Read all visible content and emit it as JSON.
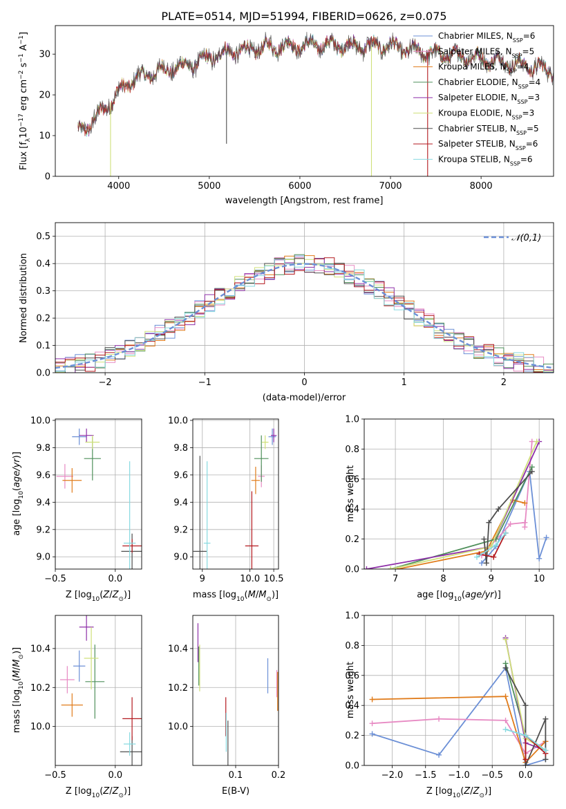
{
  "title": "PLATE=0514, MJD=51994, FIBERID=0626, z=0.075",
  "models": [
    {
      "name": "Chabrier MILES",
      "nssp": "6",
      "color": "#6b8fd6"
    },
    {
      "name": "Salpeter MILES",
      "nssp": "5",
      "color": "#e78ac3"
    },
    {
      "name": "Kroupa MILES",
      "nssp": "4",
      "color": "#e07b1a"
    },
    {
      "name": "Chabrier ELODIE",
      "nssp": "4",
      "color": "#4e8f5a"
    },
    {
      "name": "Salpeter ELODIE",
      "nssp": "3",
      "color": "#8e2fa8"
    },
    {
      "name": "Kroupa ELODIE",
      "nssp": "3",
      "color": "#cfe07a"
    },
    {
      "name": "Chabrier STELIB",
      "nssp": "5",
      "color": "#4d4d4d"
    },
    {
      "name": "Salpeter STELIB",
      "nssp": "6",
      "color": "#b3181e"
    },
    {
      "name": "Kroupa STELIB",
      "nssp": "6",
      "color": "#86d9e0"
    }
  ],
  "chart_data": [
    {
      "id": "spectrum",
      "type": "line",
      "xlabel": "wavelength [Angstrom, rest frame]",
      "ylabel": "Flux [f_λ 10^−17 erg cm^−2 s^−1 A^−1]",
      "xlim": [
        3300,
        8800
      ],
      "ylim": [
        0,
        37
      ],
      "xticks": [
        4000,
        5000,
        6000,
        7000,
        8000
      ],
      "yticks": [
        0,
        10,
        20,
        30
      ],
      "grid": false,
      "legend_position": "top-right",
      "continuum": {
        "x": [
          3550,
          3700,
          3850,
          3950,
          4050,
          4200,
          4400,
          4600,
          4800,
          5000,
          5200,
          5400,
          5600,
          5800,
          6000,
          6200,
          6500,
          6800,
          7000,
          7200,
          7500,
          7800,
          8100,
          8400,
          8800
        ],
        "y": [
          11,
          13,
          17,
          19,
          22,
          24,
          25.5,
          26.5,
          27.5,
          29,
          30.5,
          31,
          31.5,
          32,
          32,
          32.3,
          32,
          32,
          32,
          31,
          30,
          29.5,
          28.5,
          27.5,
          26
        ]
      },
      "spikes": [
        {
          "series": "Kroupa ELODIE",
          "x": 3910,
          "y": 0
        },
        {
          "series": "Kroupa ELODIE",
          "x": 6790,
          "y": 0
        },
        {
          "series": "Salpeter STELIB",
          "x": 7410,
          "y": 0
        },
        {
          "series": "Chabrier STELIB",
          "x": 5190,
          "y": 8
        }
      ]
    },
    {
      "id": "residuals",
      "type": "histogram",
      "xlabel": "(data-model)/error",
      "ylabel": "Normed distribution",
      "xlim": [
        -2.5,
        2.5
      ],
      "ylim": [
        0,
        0.55
      ],
      "xticks": [
        -2,
        -1,
        0,
        1,
        2
      ],
      "yticks": [
        0.0,
        0.1,
        0.2,
        0.3,
        0.4,
        0.5
      ],
      "grid": true,
      "bin_width": 0.1,
      "reference_curve": {
        "label": "𝒩(0,1)",
        "mean": 0,
        "sigma": 1,
        "color": "#6b8fd6",
        "dashed": true
      },
      "legend_position": "top-right"
    },
    {
      "id": "age-vs-Z",
      "type": "errorbar",
      "xlabel": "Z [log10(Z/Z⊙)]",
      "ylabel": "age [log10(age/yr)]",
      "xlim": [
        -0.5,
        0.22
      ],
      "ylim": [
        8.91,
        10.01
      ],
      "xticks": [
        -0.5,
        0.0
      ],
      "yticks": [
        9.0,
        9.2,
        9.4,
        9.6,
        9.8,
        10.0
      ],
      "grid": true,
      "points": [
        {
          "series": "Chabrier MILES",
          "x": -0.3,
          "y": 9.88,
          "xerr": 0.06,
          "yerr": 0.06
        },
        {
          "series": "Salpeter MILES",
          "x": -0.42,
          "y": 9.59,
          "xerr": 0.07,
          "yerr": 0.09
        },
        {
          "series": "Kroupa MILES",
          "x": -0.36,
          "y": 9.56,
          "xerr": 0.08,
          "yerr": 0.09
        },
        {
          "series": "Chabrier ELODIE",
          "x": -0.19,
          "y": 9.72,
          "xerr": 0.07,
          "yerr": 0.16
        },
        {
          "series": "Salpeter ELODIE",
          "x": -0.24,
          "y": 9.89,
          "xerr": 0.06,
          "yerr": 0.05
        },
        {
          "series": "Kroupa ELODIE",
          "x": -0.19,
          "y": 9.84,
          "xerr": 0.06,
          "yerr": 0.05
        },
        {
          "series": "Chabrier STELIB",
          "x": 0.14,
          "y": 9.04,
          "xerr": 0.09,
          "yerr": 0.13
        },
        {
          "series": "Salpeter STELIB",
          "x": 0.14,
          "y": 9.08,
          "xerr": 0.08,
          "yerr": 0.05
        },
        {
          "series": "Kroupa STELIB",
          "x": 0.12,
          "y": 9.1,
          "xerr": 0.05,
          "yerr": 0.6
        }
      ]
    },
    {
      "id": "age-vs-mass",
      "type": "errorbar",
      "xlabel": "mass [log10(M/M⊙)]",
      "ylabel": "",
      "xlim": [
        8.8,
        10.6
      ],
      "ylim": [
        8.91,
        10.01
      ],
      "xticks": [
        9.0,
        10.0,
        10.5
      ],
      "xtick_labels": [
        "9",
        "10.0",
        "10.5"
      ],
      "yticks": [
        9.0,
        9.2,
        9.4,
        9.6,
        9.8,
        10.0
      ],
      "grid": true,
      "points": [
        {
          "series": "Chabrier MILES",
          "x": 10.47,
          "y": 9.88,
          "xerr": 0.08,
          "yerr": 0.06
        },
        {
          "series": "Salpeter MILES",
          "x": 10.24,
          "y": 9.59,
          "xerr": 0.07,
          "yerr": 0.08
        },
        {
          "series": "Kroupa MILES",
          "x": 10.12,
          "y": 9.56,
          "xerr": 0.09,
          "yerr": 0.1
        },
        {
          "series": "Chabrier ELODIE",
          "x": 10.24,
          "y": 9.72,
          "xerr": 0.15,
          "yerr": 0.17
        },
        {
          "series": "Salpeter ELODIE",
          "x": 10.5,
          "y": 9.89,
          "xerr": 0.06,
          "yerr": 0.05
        },
        {
          "series": "Kroupa ELODIE",
          "x": 10.32,
          "y": 9.84,
          "xerr": 0.07,
          "yerr": 0.05
        },
        {
          "series": "Chabrier STELIB",
          "x": 8.95,
          "y": 9.04,
          "xerr": 0.14,
          "yerr": 0.7
        },
        {
          "series": "Salpeter STELIB",
          "x": 10.04,
          "y": 9.08,
          "xerr": 0.14,
          "yerr": 0.4
        },
        {
          "series": "Kroupa STELIB",
          "x": 9.1,
          "y": 9.1,
          "xerr": 0.07,
          "yerr": 0.6
        }
      ]
    },
    {
      "id": "massweight-vs-age",
      "type": "line",
      "xlabel": "age [log10(age/yr)]",
      "ylabel": "mass weight",
      "xlim": [
        6.35,
        10.3
      ],
      "ylim": [
        0,
        1.0
      ],
      "xticks": [
        7,
        8,
        9,
        10
      ],
      "yticks": [
        0.0,
        0.2,
        0.4,
        0.6,
        0.8,
        1.0
      ],
      "grid": true,
      "series": [
        {
          "series": "Chabrier MILES",
          "x": [
            8.8,
            9.1,
            9.8,
            10.0,
            10.15
          ],
          "y": [
            0.04,
            0.15,
            0.65,
            0.07,
            0.21
          ]
        },
        {
          "series": "Salpeter MILES",
          "x": [
            8.8,
            9.4,
            9.7,
            9.7,
            9.85
          ],
          "y": [
            0.09,
            0.3,
            0.31,
            0.28,
            0.85
          ]
        },
        {
          "series": "Kroupa MILES",
          "x": [
            7.05,
            8.9,
            9.45,
            9.7
          ],
          "y": [
            0.0,
            0.12,
            0.46,
            0.44
          ]
        },
        {
          "series": "Chabrier ELODIE",
          "x": [
            6.9,
            9.1,
            9.85
          ],
          "y": [
            0.0,
            0.2,
            0.68
          ]
        },
        {
          "series": "Salpeter ELODIE",
          "x": [
            6.4,
            9.0,
            10.0
          ],
          "y": [
            0.0,
            0.15,
            0.85
          ]
        },
        {
          "series": "Kroupa ELODIE",
          "x": [
            6.9,
            9.0,
            9.95
          ],
          "y": [
            0.0,
            0.15,
            0.85
          ]
        },
        {
          "series": "Chabrier STELIB",
          "x": [
            8.85,
            8.9,
            8.95,
            9.15,
            9.85
          ],
          "y": [
            0.2,
            0.04,
            0.31,
            0.4,
            0.65
          ]
        },
        {
          "series": "Salpeter STELIB",
          "x": [
            8.75,
            9.05,
            9.3
          ],
          "y": [
            0.1,
            0.08,
            0.24
          ]
        },
        {
          "series": "Kroupa STELIB",
          "x": [
            8.7,
            9.1,
            9.3
          ],
          "y": [
            0.08,
            0.16,
            0.24
          ]
        }
      ]
    },
    {
      "id": "mass-vs-Z",
      "type": "errorbar",
      "xlabel": "Z [log10(Z/Z⊙)]",
      "ylabel": "mass [log10(M/M⊙)]",
      "xlim": [
        -0.5,
        0.22
      ],
      "ylim": [
        9.8,
        10.57
      ],
      "xticks": [
        -0.5,
        0.0
      ],
      "yticks": [
        10.0,
        10.2,
        10.4
      ],
      "grid": true,
      "points": [
        {
          "series": "Chabrier MILES",
          "x": -0.3,
          "y": 10.31,
          "xerr": 0.05,
          "yerr": 0.08
        },
        {
          "series": "Salpeter MILES",
          "x": -0.4,
          "y": 10.24,
          "xerr": 0.06,
          "yerr": 0.07
        },
        {
          "series": "Kroupa MILES",
          "x": -0.36,
          "y": 10.11,
          "xerr": 0.09,
          "yerr": 0.06
        },
        {
          "series": "Chabrier ELODIE",
          "x": -0.17,
          "y": 10.23,
          "xerr": 0.08,
          "yerr": 0.19
        },
        {
          "series": "Salpeter ELODIE",
          "x": -0.24,
          "y": 10.51,
          "xerr": 0.06,
          "yerr": 0.07
        },
        {
          "series": "Kroupa ELODIE",
          "x": -0.2,
          "y": 10.35,
          "xerr": 0.06,
          "yerr": 0.16
        },
        {
          "series": "Chabrier STELIB",
          "x": 0.14,
          "y": 9.87,
          "xerr": 0.1,
          "yerr": 0.08
        },
        {
          "series": "Salpeter STELIB",
          "x": 0.14,
          "y": 10.04,
          "xerr": 0.08,
          "yerr": 0.11
        },
        {
          "series": "Kroupa STELIB",
          "x": 0.12,
          "y": 9.91,
          "xerr": 0.05,
          "yerr": 0.06
        }
      ]
    },
    {
      "id": "mass-vs-EBV",
      "type": "errorbar",
      "xlabel": "E(B-V)",
      "ylabel": "",
      "xlim": [
        0.0,
        0.2
      ],
      "ylim": [
        9.8,
        10.57
      ],
      "xticks": [
        0.1,
        0.2
      ],
      "yticks": [
        10.0,
        10.2,
        10.4
      ],
      "grid": true,
      "points": [
        {
          "series": "Chabrier MILES",
          "x": 0.175,
          "y": 10.26,
          "xerr": 0.0,
          "yerr": 0.09
        },
        {
          "series": "Salpeter MILES",
          "x": 0.196,
          "y": 10.22,
          "xerr": 0.0,
          "yerr": 0.07
        },
        {
          "series": "Kroupa MILES",
          "x": 0.198,
          "y": 10.18,
          "xerr": 0.0,
          "yerr": 0.1
        },
        {
          "series": "Chabrier ELODIE",
          "x": 0.014,
          "y": 10.31,
          "xerr": 0.0,
          "yerr": 0.1
        },
        {
          "series": "Salpeter ELODIE",
          "x": 0.012,
          "y": 10.43,
          "xerr": 0.0,
          "yerr": 0.1
        },
        {
          "series": "Kroupa ELODIE",
          "x": 0.016,
          "y": 10.3,
          "xerr": 0.0,
          "yerr": 0.12
        },
        {
          "series": "Chabrier STELIB",
          "x": 0.082,
          "y": 9.91,
          "xerr": 0.0,
          "yerr": 0.12
        },
        {
          "series": "Salpeter STELIB",
          "x": 0.077,
          "y": 10.05,
          "xerr": 0.0,
          "yerr": 0.1
        },
        {
          "series": "Kroupa STELIB",
          "x": 0.078,
          "y": 9.97,
          "xerr": 0.0,
          "yerr": 0.1
        }
      ]
    },
    {
      "id": "massweight-vs-Z",
      "type": "line",
      "xlabel": "Z [log10(Z/Z⊙)]",
      "ylabel": "mass weight",
      "xlim": [
        -2.42,
        0.42
      ],
      "ylim": [
        0,
        1.0
      ],
      "xticks": [
        -2.0,
        -1.5,
        -1.0,
        -0.5,
        0.0
      ],
      "yticks": [
        0.0,
        0.2,
        0.4,
        0.6,
        0.8,
        1.0
      ],
      "grid": true,
      "series": [
        {
          "series": "Chabrier MILES",
          "x": [
            -2.3,
            -1.3,
            -0.3,
            0.0,
            0.3
          ],
          "y": [
            0.21,
            0.07,
            0.65,
            0.0,
            0.04
          ]
        },
        {
          "series": "Salpeter MILES",
          "x": [
            -2.3,
            -1.3,
            -0.3,
            0.0,
            0.3
          ],
          "y": [
            0.28,
            0.31,
            0.3,
            0.08,
            0.16
          ]
        },
        {
          "series": "Kroupa MILES",
          "x": [
            -2.3,
            -0.3,
            0.0,
            0.3
          ],
          "y": [
            0.44,
            0.46,
            0.02,
            0.16
          ]
        },
        {
          "series": "Chabrier ELODIE",
          "x": [
            -0.3,
            0.0,
            0.3
          ],
          "y": [
            0.68,
            0.2,
            0.1
          ]
        },
        {
          "series": "Salpeter ELODIE",
          "x": [
            -0.3,
            0.0,
            0.3
          ],
          "y": [
            0.85,
            0.15,
            0.1
          ]
        },
        {
          "series": "Kroupa ELODIE",
          "x": [
            -0.3,
            0.0,
            0.3
          ],
          "y": [
            0.84,
            0.18,
            0.1
          ]
        },
        {
          "series": "Chabrier STELIB",
          "x": [
            -0.3,
            0.0,
            0.0,
            0.3,
            0.3
          ],
          "y": [
            0.65,
            0.4,
            0.0,
            0.31,
            0.04
          ]
        },
        {
          "series": "Salpeter STELIB",
          "x": [
            0.0,
            0.0,
            0.3
          ],
          "y": [
            0.04,
            0.2,
            0.08
          ]
        },
        {
          "series": "Kroupa STELIB",
          "x": [
            -0.3,
            0.0,
            0.3
          ],
          "y": [
            0.24,
            0.2,
            0.1
          ]
        }
      ]
    }
  ]
}
